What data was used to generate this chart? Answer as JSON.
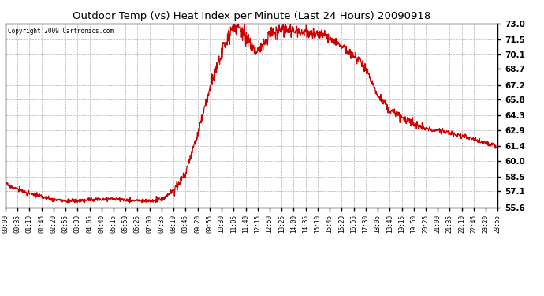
{
  "title": "Outdoor Temp (vs) Heat Index per Minute (Last 24 Hours) 20090918",
  "copyright": "Copyright 2009 Cartronics.com",
  "line_color": "#cc0000",
  "background_color": "#ffffff",
  "grid_color": "#b0b0b0",
  "ylim": [
    55.6,
    73.0
  ],
  "yticks": [
    55.6,
    57.1,
    58.5,
    60.0,
    61.4,
    62.9,
    64.3,
    65.8,
    67.2,
    68.7,
    70.1,
    71.5,
    73.0
  ],
  "xtick_labels": [
    "00:00",
    "00:35",
    "01:10",
    "01:45",
    "02:20",
    "02:55",
    "03:30",
    "04:05",
    "04:40",
    "05:15",
    "05:50",
    "06:25",
    "07:00",
    "07:35",
    "08:10",
    "08:45",
    "09:20",
    "09:55",
    "10:30",
    "11:05",
    "11:40",
    "12:15",
    "12:50",
    "13:25",
    "14:00",
    "14:35",
    "15:10",
    "15:45",
    "16:20",
    "16:55",
    "17:30",
    "18:05",
    "18:40",
    "19:15",
    "19:50",
    "20:25",
    "21:00",
    "21:35",
    "22:10",
    "22:45",
    "23:20",
    "23:55"
  ],
  "key_times_min": [
    0,
    35,
    70,
    105,
    140,
    175,
    210,
    245,
    280,
    315,
    350,
    385,
    420,
    455,
    490,
    525,
    560,
    595,
    630,
    665,
    700,
    735,
    770,
    805,
    840,
    875,
    910,
    945,
    980,
    1015,
    1050,
    1085,
    1120,
    1155,
    1190,
    1225,
    1260,
    1295,
    1330,
    1365,
    1400,
    1435
  ],
  "key_values": [
    57.8,
    57.3,
    56.9,
    56.6,
    56.3,
    56.2,
    56.2,
    56.3,
    56.4,
    56.4,
    56.3,
    56.2,
    56.2,
    56.3,
    57.2,
    58.8,
    62.5,
    66.8,
    70.1,
    73.0,
    71.8,
    70.3,
    72.0,
    72.5,
    72.3,
    72.2,
    72.0,
    71.7,
    70.8,
    70.0,
    68.8,
    66.2,
    64.8,
    64.2,
    63.5,
    63.0,
    62.9,
    62.6,
    62.4,
    62.0,
    61.7,
    61.3
  ],
  "total_minutes": 1435
}
